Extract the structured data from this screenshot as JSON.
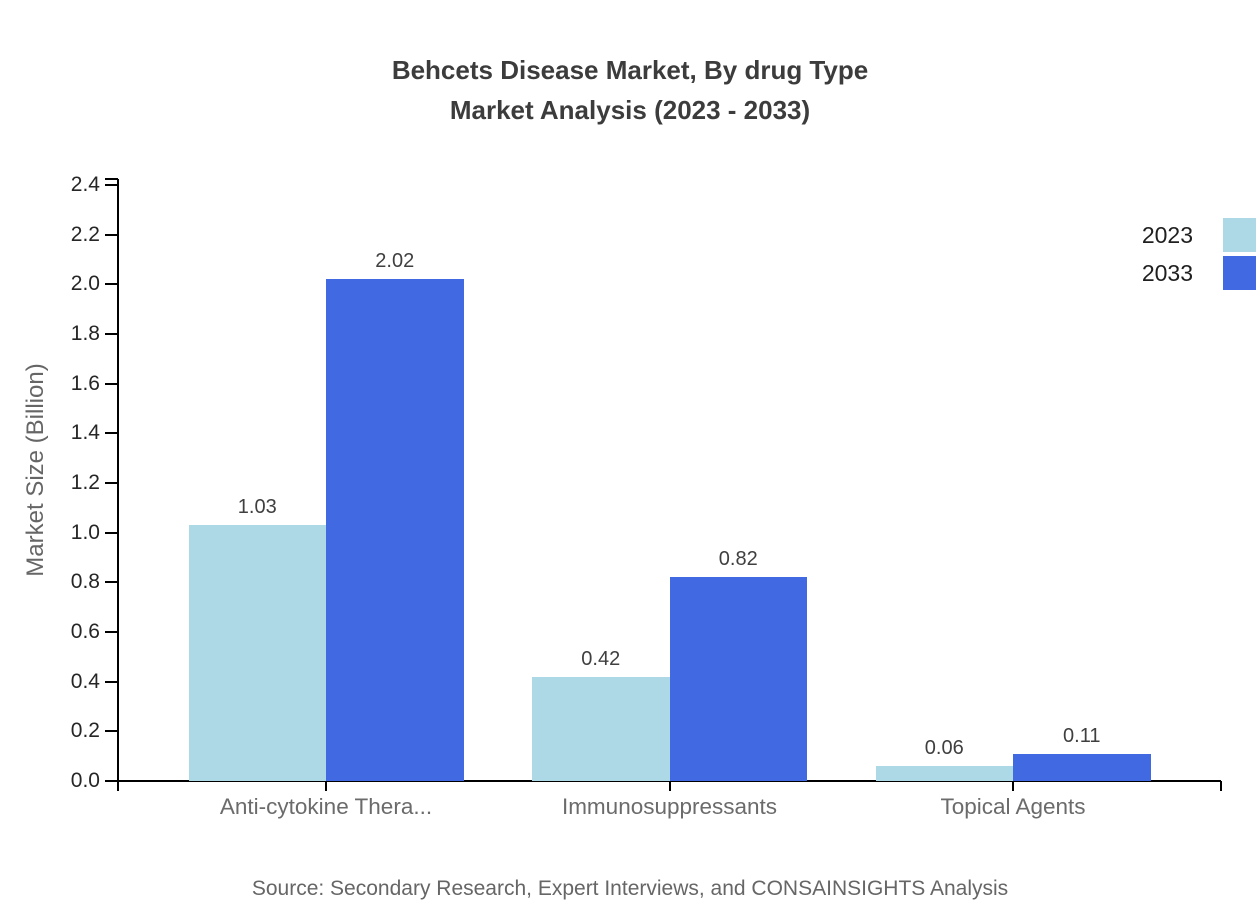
{
  "chart": {
    "title_line1": "Behcets Disease Market, By drug Type",
    "title_line2": "Market Analysis (2023 - 2033)",
    "ylabel": "Market Size (Billion)",
    "source": "Source: Secondary Research, Expert Interviews, and CONSAINSIGHTS Analysis"
  },
  "chart_data": {
    "type": "bar",
    "title": "Behcets Disease Market, By drug Type Market Analysis (2023 - 2033)",
    "categories": [
      "Anti-cytokine Thera...",
      "Immunosuppressants",
      "Topical Agents"
    ],
    "series": [
      {
        "name": "2023",
        "color": "#ADD8E6",
        "values": [
          1.03,
          0.42,
          0.06
        ]
      },
      {
        "name": "2033",
        "color": "#4169E1",
        "values": [
          2.02,
          0.82,
          0.11
        ]
      }
    ],
    "xlabel": "",
    "ylabel": "Market Size (Billion)",
    "ylim": [
      0,
      2.4
    ],
    "ytick_step": 0.2,
    "ytick_decimals": 1,
    "grid": false,
    "value_labels": true,
    "legend_position": "top-right",
    "source": "Source: Secondary Research, Expert Interviews, and CONSAINSIGHTS Analysis"
  }
}
